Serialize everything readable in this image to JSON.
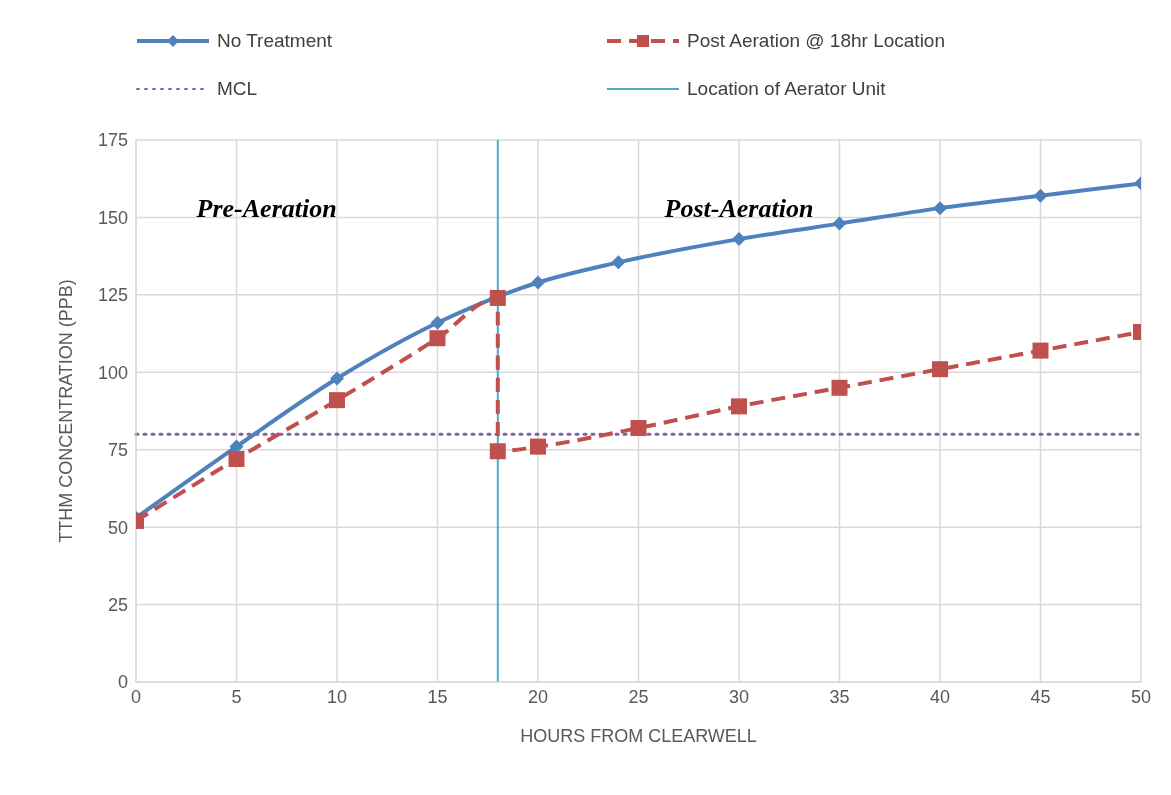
{
  "chart_data": {
    "type": "line",
    "xlabel": "HOURS FROM CLEARWELL",
    "ylabel": "TTHM CONCENTRATION (PPB)",
    "xlim": [
      0,
      50
    ],
    "xticks": [
      0,
      5,
      10,
      15,
      20,
      25,
      30,
      35,
      40,
      45,
      50
    ],
    "ylim": [
      0,
      175
    ],
    "yticks": [
      0,
      25,
      50,
      75,
      100,
      125,
      150,
      175
    ],
    "grid": true,
    "legend": "top",
    "series": [
      {
        "name": "No Treatment",
        "color": "#4f81bd",
        "marker": "diamond",
        "line_style": "solid",
        "x": [
          0,
          5,
          10,
          15,
          20,
          24,
          30,
          35,
          40,
          45,
          50
        ],
        "values": [
          53,
          76,
          98,
          116,
          129,
          135.5,
          143,
          148,
          153,
          157,
          161
        ]
      },
      {
        "name": "Post Aeration @ 18hr Location",
        "color": "#c0504d",
        "marker": "square",
        "line_style": "dashed",
        "x": [
          0,
          5,
          10,
          15,
          18,
          18,
          20,
          25,
          30,
          35,
          40,
          45,
          50
        ],
        "values": [
          52,
          72,
          91,
          111,
          124,
          74.5,
          76,
          82,
          89,
          95,
          101,
          107,
          113
        ]
      }
    ],
    "ref_lines": [
      {
        "axis": "y",
        "value": 80,
        "label": "MCL",
        "color": "#8064a2",
        "line_style": "dotted"
      },
      {
        "axis": "x",
        "value": 18,
        "label": "Location of Aerator Unit",
        "color": "#4bacc6",
        "line_style": "solid"
      }
    ],
    "annotations": [
      "Pre-Aeration",
      "Post-Aeration"
    ]
  }
}
